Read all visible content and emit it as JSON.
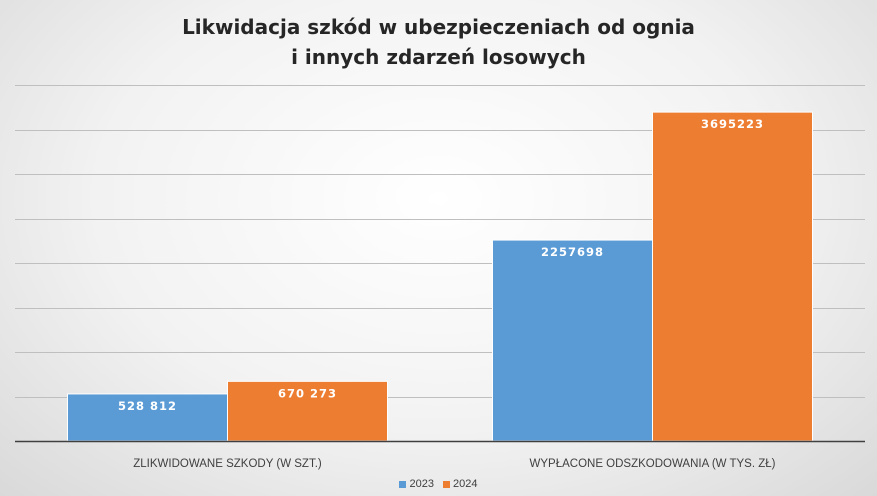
{
  "chart_data": {
    "type": "bar",
    "title_lines": [
      "Likwidacja szkód w ubezpieczeniach od ognia",
      "i innych zdarzeń losowych"
    ],
    "categories": [
      "ZLIKWIDOWANE SZKODY (W SZT.)",
      "WYPŁACONE ODSZKODOWANIA (W TYS. ZŁ)"
    ],
    "series": [
      {
        "name": "2023",
        "color": "#5B9BD5",
        "values": [
          528812,
          2257698
        ],
        "labels": [
          "528 812",
          "2257698"
        ]
      },
      {
        "name": "2024",
        "color": "#ED7D31",
        "values": [
          670273,
          3695223
        ],
        "labels": [
          "670 273",
          "3695223"
        ]
      }
    ],
    "ylim": [
      0,
      4000000
    ],
    "grid": true,
    "legend_position": "bottom"
  }
}
